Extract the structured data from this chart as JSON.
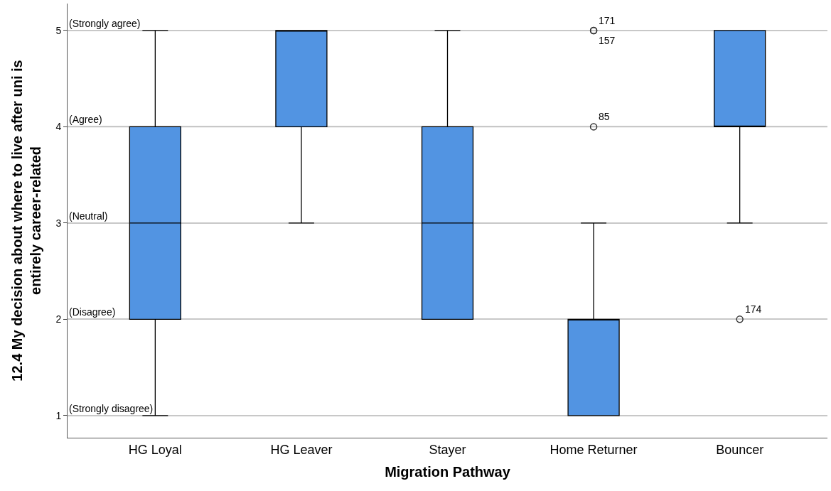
{
  "chart_data": {
    "type": "box",
    "xlabel": "Migration Pathway",
    "ylabel": "12.4 My decision about where to live after uni is entirely career-related",
    "categories": [
      "HG Loyal",
      "HG Leaver",
      "Stayer",
      "Home Returner",
      "Bouncer"
    ],
    "color": "#5294e2",
    "boxes": [
      {
        "low": 1,
        "q1": 2,
        "median": 3,
        "q3": 4,
        "high": 5
      },
      {
        "low": 3,
        "q1": 4,
        "median": 5,
        "q3": 5,
        "high": 5
      },
      {
        "low": 2,
        "q1": 2,
        "median": 3,
        "q3": 4,
        "high": 5
      },
      {
        "low": 1,
        "q1": 1,
        "median": 2,
        "q3": 2,
        "high": 3,
        "outliers": [
          5,
          5,
          4
        ]
      },
      {
        "low": 3,
        "q1": 4,
        "median": 4,
        "q3": 5,
        "high": 5,
        "outliers": [
          2
        ]
      }
    ],
    "ylim": [
      0.77,
      5.28
    ],
    "yticks": [
      1,
      2,
      3,
      4,
      5
    ],
    "grid": "y",
    "marker": "circle",
    "ref_lines": [
      {
        "axis": "y",
        "value": 5,
        "label": "(Strongly agree)",
        "color": "#c8c8c8"
      },
      {
        "axis": "y",
        "value": 4,
        "label": "(Agree)",
        "color": "#c8c8c8"
      },
      {
        "axis": "y",
        "value": 3,
        "label": "(Neutral)",
        "color": "#c8c8c8"
      },
      {
        "axis": "y",
        "value": 2,
        "label": "(Disagree)",
        "color": "#c8c8c8"
      },
      {
        "axis": "y",
        "value": 1,
        "label": "(Strongly disagree)",
        "color": "#c8c8c8"
      }
    ],
    "annotations": [
      "171",
      "157",
      "85",
      "174"
    ]
  }
}
